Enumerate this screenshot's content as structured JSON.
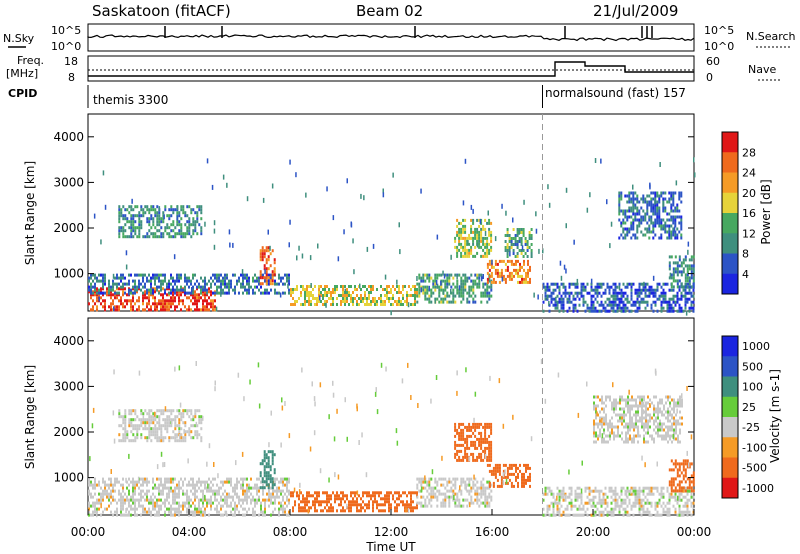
{
  "header": {
    "station": "Saskatoon (fitACF)",
    "beam": "Beam 02",
    "date": "21/Jul/2009"
  },
  "nsky_panel": {
    "left_label": "N.Sky",
    "left_ticks": [
      "10^5",
      "10^0"
    ],
    "right_ticks": [
      "10^5",
      "10^0"
    ],
    "right_label": "N.Search"
  },
  "freq_panel": {
    "left_label_1": "Freq.",
    "left_label_2": "[MHz]",
    "left_ticks": [
      "18",
      "8"
    ],
    "right_ticks": [
      "60",
      "0"
    ],
    "right_label": "Nave"
  },
  "cpid": {
    "label": "CPID",
    "mode_1": "themis 3300",
    "mode_2": "normalsound (fast) 157",
    "mode_change_hour": 18.0
  },
  "chart_data": [
    {
      "type": "heatmap",
      "name": "power",
      "ylabel": "Slant Range [km]",
      "y_ticks": [
        "1000",
        "2000",
        "3000",
        "4000"
      ],
      "yticks_values": [
        1000,
        2000,
        3000,
        4000
      ],
      "ylim": [
        180,
        4500
      ],
      "xlim": [
        0,
        24
      ],
      "colorbar_label": "Power [dB]",
      "colorbar_ticks": [
        "4",
        "8",
        "12",
        "16",
        "20",
        "24",
        "28"
      ],
      "colorbar_values": [
        4,
        8,
        12,
        16,
        20,
        24,
        28
      ],
      "colorbar_colors": [
        "#1b25e0",
        "#2c54c6",
        "#3f8f7e",
        "#47a860",
        "#e6d33a",
        "#f59b26",
        "#ef6a1d",
        "#e01717"
      ],
      "echo_regions": [
        {
          "x0": 0.0,
          "x1": 5.0,
          "r0": 200,
          "r1": 700,
          "level": 28
        },
        {
          "x0": 0.0,
          "x1": 8.0,
          "r0": 600,
          "r1": 1000,
          "level": 8
        },
        {
          "x0": 1.2,
          "x1": 4.5,
          "r0": 1800,
          "r1": 2500,
          "level": 10
        },
        {
          "x0": 6.8,
          "x1": 7.4,
          "r0": 800,
          "r1": 1600,
          "level": 26
        },
        {
          "x0": 8.0,
          "x1": 13.0,
          "r0": 350,
          "r1": 750,
          "level": 18
        },
        {
          "x0": 13.0,
          "x1": 16.0,
          "r0": 400,
          "r1": 1000,
          "level": 12
        },
        {
          "x0": 14.5,
          "x1": 16.0,
          "r0": 1400,
          "r1": 2200,
          "level": 16
        },
        {
          "x0": 15.8,
          "x1": 17.5,
          "r0": 800,
          "r1": 1300,
          "level": 24
        },
        {
          "x0": 16.5,
          "x1": 17.6,
          "r0": 1400,
          "r1": 2000,
          "level": 12
        },
        {
          "x0": 18.0,
          "x1": 24.0,
          "r0": 200,
          "r1": 800,
          "level": 6
        },
        {
          "x0": 21.0,
          "x1": 23.5,
          "r0": 1800,
          "r1": 2800,
          "level": 8
        },
        {
          "x0": 23.0,
          "x1": 24.0,
          "r0": 700,
          "r1": 1400,
          "level": 10
        }
      ]
    },
    {
      "type": "heatmap",
      "name": "velocity",
      "ylabel": "Slant Range [km]",
      "y_ticks": [
        "1000",
        "2000",
        "3000",
        "4000"
      ],
      "yticks_values": [
        1000,
        2000,
        3000,
        4000
      ],
      "ylim": [
        180,
        4500
      ],
      "xlim": [
        0,
        24
      ],
      "colorbar_label": "Velocity [m s-1]",
      "colorbar_ticks": [
        "1000",
        "500",
        "100",
        "25",
        "-25",
        "-100",
        "-500",
        "-1000"
      ],
      "colorbar_values": [
        1000,
        500,
        100,
        25,
        -25,
        -100,
        -500,
        -1000
      ],
      "colorbar_colors": [
        "#1b25e0",
        "#2c54c6",
        "#3f8f7e",
        "#66cc3a",
        "#c9c9c9",
        "#f59b26",
        "#ef6a1d",
        "#e01717"
      ],
      "echo_regions": [
        {
          "x0": 0.0,
          "x1": 8.0,
          "r0": 200,
          "r1": 1000,
          "level": 0
        },
        {
          "x0": 1.2,
          "x1": 4.5,
          "r0": 1800,
          "r1": 2500,
          "level": 0
        },
        {
          "x0": 6.8,
          "x1": 7.4,
          "r0": 800,
          "r1": 1600,
          "level": 300
        },
        {
          "x0": 8.0,
          "x1": 13.0,
          "r0": 300,
          "r1": 700,
          "level": -150
        },
        {
          "x0": 13.0,
          "x1": 16.0,
          "r0": 400,
          "r1": 1000,
          "level": 0
        },
        {
          "x0": 14.5,
          "x1": 16.0,
          "r0": 1400,
          "r1": 2200,
          "level": -300
        },
        {
          "x0": 15.8,
          "x1": 17.5,
          "r0": 800,
          "r1": 1300,
          "level": -200
        },
        {
          "x0": 18.0,
          "x1": 24.0,
          "r0": 200,
          "r1": 800,
          "level": 0
        },
        {
          "x0": 20.0,
          "x1": 23.5,
          "r0": 1800,
          "r1": 2800,
          "level": 0
        },
        {
          "x0": 23.0,
          "x1": 24.0,
          "r0": 700,
          "r1": 1400,
          "level": -300
        }
      ]
    }
  ],
  "x_axis": {
    "ticks": [
      "00:00",
      "04:00",
      "08:00",
      "12:00",
      "16:00",
      "20:00",
      "00:00"
    ],
    "tick_values": [
      0,
      4,
      8,
      12,
      16,
      20,
      24
    ],
    "label": "Time UT"
  }
}
